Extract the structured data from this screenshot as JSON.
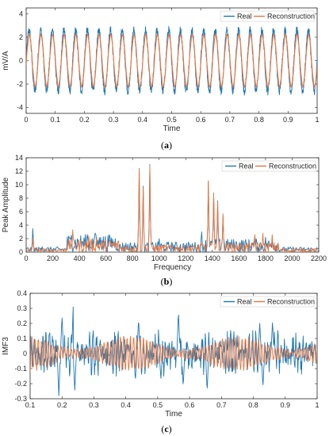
{
  "colors": {
    "real": "#1f77b4",
    "reconstruction": "#e8743b",
    "axis": "#262626"
  },
  "chart_data": [
    {
      "type": "line",
      "caption_letter": "a",
      "xlabel": "Time",
      "ylabel": "mV/A",
      "xlim": [
        0,
        1
      ],
      "ylim": [
        -4.5,
        4.5
      ],
      "xticks": [
        0,
        0.1,
        0.2,
        0.3,
        0.4,
        0.5,
        0.6,
        0.7,
        0.8,
        0.9,
        1
      ],
      "xtick_labels": [
        "0",
        "0.1",
        "0.2",
        "0.3",
        "0.4",
        "0.5",
        "0.6",
        "0.7",
        "0.8",
        "0.9",
        "1"
      ],
      "yticks": [
        -4,
        -2,
        0,
        2,
        4
      ],
      "ytick_labels": [
        "-4",
        "-2",
        "0",
        "2",
        "4"
      ],
      "legend": [
        "Real",
        "Reconstruction"
      ],
      "legend_position": "top-right",
      "series": [
        {
          "name": "Real",
          "frequency_hz": 25,
          "amplitude": 2.6,
          "noise": 0.35
        },
        {
          "name": "Reconstruction",
          "frequency_hz": 25,
          "amplitude": 2.2
        }
      ]
    },
    {
      "type": "line",
      "caption_letter": "b",
      "xlabel": "Frequency",
      "ylabel": "Peak Amplitude",
      "xlim": [
        0,
        2200
      ],
      "ylim": [
        0,
        14
      ],
      "xticks": [
        0,
        200,
        400,
        600,
        800,
        1000,
        1200,
        1400,
        1600,
        1800,
        2000,
        2200
      ],
      "xtick_labels": [
        "0",
        "200",
        "400",
        "600",
        "800",
        "1000",
        "1200",
        "1400",
        "1600",
        "1800",
        "2000",
        "2200"
      ],
      "yticks": [
        0,
        2,
        4,
        6,
        8,
        10,
        12,
        14
      ],
      "ytick_labels": [
        "0",
        "2",
        "4",
        "6",
        "8",
        "10",
        "12",
        "14"
      ],
      "legend": [
        "Real",
        "Reconstruction"
      ],
      "legend_position": "top-right",
      "series": [
        {
          "name": "Real",
          "peaks": [
            [
              50,
              3.5
            ],
            [
              120,
              0.8
            ],
            [
              340,
              2.5
            ],
            [
              460,
              2.6
            ],
            [
              520,
              2.8
            ],
            [
              560,
              2.2
            ],
            [
              640,
              1.8
            ],
            [
              850,
              12.4
            ],
            [
              880,
              9.8
            ],
            [
              930,
              13.0
            ],
            [
              1000,
              2.0
            ],
            [
              1320,
              3.0
            ],
            [
              1370,
              10.5
            ],
            [
              1410,
              8.6
            ],
            [
              1440,
              7.6
            ],
            [
              1480,
              5.4
            ],
            [
              1720,
              2.4
            ],
            [
              1800,
              2.2
            ],
            [
              1850,
              1.8
            ]
          ]
        },
        {
          "name": "Reconstruction",
          "peaks": [
            [
              50,
              2.1
            ],
            [
              350,
              3.3
            ],
            [
              470,
              2.4
            ],
            [
              530,
              2.2
            ],
            [
              850,
              12.3
            ],
            [
              880,
              9.5
            ],
            [
              930,
              12.8
            ],
            [
              1370,
              10.6
            ],
            [
              1410,
              8.8
            ],
            [
              1440,
              7.4
            ],
            [
              1480,
              5.7
            ],
            [
              1720,
              2.6
            ],
            [
              1780,
              2.8
            ],
            [
              1850,
              2.6
            ]
          ]
        }
      ]
    },
    {
      "type": "line",
      "caption_letter": "c",
      "xlabel": "Time",
      "ylabel": "IMF3",
      "xlim": [
        0.1,
        1
      ],
      "ylim": [
        -0.3,
        0.4
      ],
      "xticks": [
        0.1,
        0.2,
        0.3,
        0.4,
        0.5,
        0.6,
        0.7,
        0.8,
        0.9,
        1
      ],
      "xtick_labels": [
        "0.1",
        "0.2",
        "0.3",
        "0.4",
        "0.5",
        "0.6",
        "0.7",
        "0.8",
        "0.9",
        "1"
      ],
      "yticks": [
        -0.3,
        -0.2,
        -0.1,
        0,
        0.1,
        0.2,
        0.3,
        0.4
      ],
      "ytick_labels": [
        "-0.3",
        "-0.2",
        "-0.1",
        "0",
        "0.1",
        "0.2",
        "0.3",
        "0.4"
      ],
      "legend": [
        "Real",
        "Reconstruction"
      ],
      "legend_position": "top-right",
      "series": [
        {
          "name": "Real",
          "max": 0.31,
          "min": -0.28
        },
        {
          "name": "Reconstruction",
          "max": 0.16,
          "min": -0.16
        }
      ]
    }
  ],
  "captions": {
    "a": "a",
    "b": "b",
    "c": "c"
  }
}
